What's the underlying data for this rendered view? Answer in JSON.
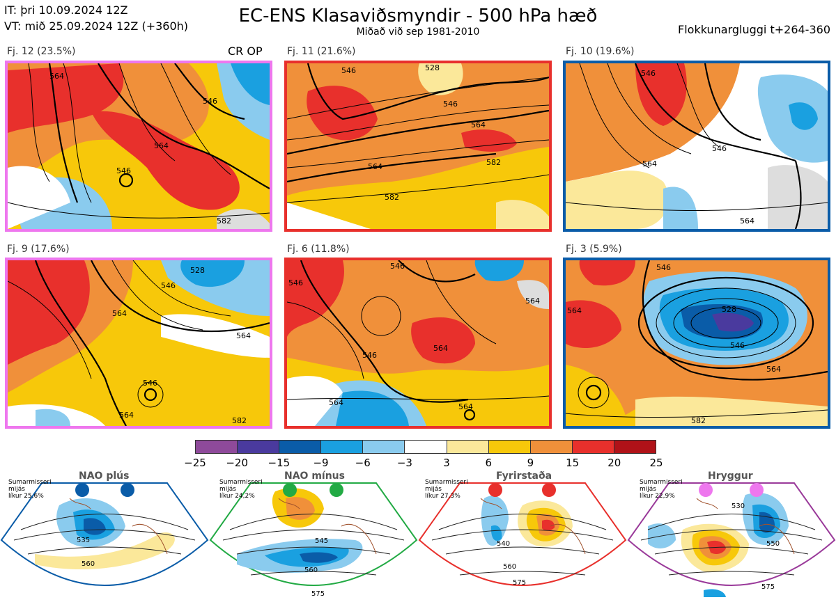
{
  "header": {
    "it_line": "IT: þri 10.09.2024 12Z",
    "vt_line": "VT: mið 25.09.2024 12Z  (+360h)",
    "title": "EC-ENS Klasaviðsmyndir - 500 hPa hæð",
    "subtitle": "Miðað við sep 1981-2010",
    "window": "Flokkunargluggi t+264-360"
  },
  "panels": [
    {
      "label": "Fj. 12 (23.5%)",
      "extra": "CR OP",
      "border": "#ee77ee",
      "contours": [
        "564",
        "546",
        "546",
        "564",
        "582"
      ]
    },
    {
      "label": "Fj. 11 (21.6%)",
      "border": "#e8302c",
      "contours": [
        "546",
        "528",
        "546",
        "564",
        "564",
        "582",
        "582"
      ]
    },
    {
      "label": "Fj. 10 (19.6%)",
      "border": "#0a5ca8",
      "contours": [
        "546",
        "546",
        "564",
        "564"
      ]
    },
    {
      "label": "Fj. 9 (17.6%)",
      "border": "#ee77ee",
      "contours": [
        "528",
        "546",
        "564",
        "564",
        "546",
        "564",
        "582"
      ]
    },
    {
      "label": "Fj. 6 (11.8%)",
      "border": "#e8302c",
      "contours": [
        "546",
        "546",
        "564",
        "564",
        "546",
        "564",
        "564"
      ]
    },
    {
      "label": "Fj. 3 (5.9%)",
      "border": "#0a5ca8",
      "contours": [
        "546",
        "528",
        "546",
        "564",
        "564",
        "582"
      ]
    }
  ],
  "colorbar": {
    "colors": [
      "#8e4a9a",
      "#4a3a9e",
      "#0a5ca8",
      "#1aa0e0",
      "#8acbee",
      "#ffffff",
      "#fbe89a",
      "#f7c80a",
      "#f0903a",
      "#e8302c",
      "#b01218"
    ],
    "ticks": [
      "−25",
      "−20",
      "−15",
      "−9",
      "−6",
      "−3",
      "3",
      "6",
      "9",
      "15",
      "20",
      "25"
    ]
  },
  "regimes": [
    {
      "title": "NAO plús",
      "note": [
        "Sumarmisseri",
        "mijás",
        "líkur 25,6%"
      ],
      "color": "#0a5ca8",
      "contours": [
        "535",
        "560"
      ]
    },
    {
      "title": "NAO mínus",
      "note": [
        "Sumarmisseri",
        "mijás",
        "líkur 24,2%"
      ],
      "color": "#22aa44",
      "contours": [
        "545",
        "560",
        "575"
      ]
    },
    {
      "title": "Fyrirstaða",
      "note": [
        "Sumarmisseri",
        "mijás",
        "líkur 27,3%"
      ],
      "color": "#e8302c",
      "contours": [
        "540",
        "560",
        "575"
      ]
    },
    {
      "title": "Hryggur",
      "note": [
        "Sumarmisseri",
        "mijás",
        "líkur 22,9%"
      ],
      "color": "#9a3a9a",
      "contours": [
        "530",
        "550",
        "575"
      ]
    }
  ]
}
